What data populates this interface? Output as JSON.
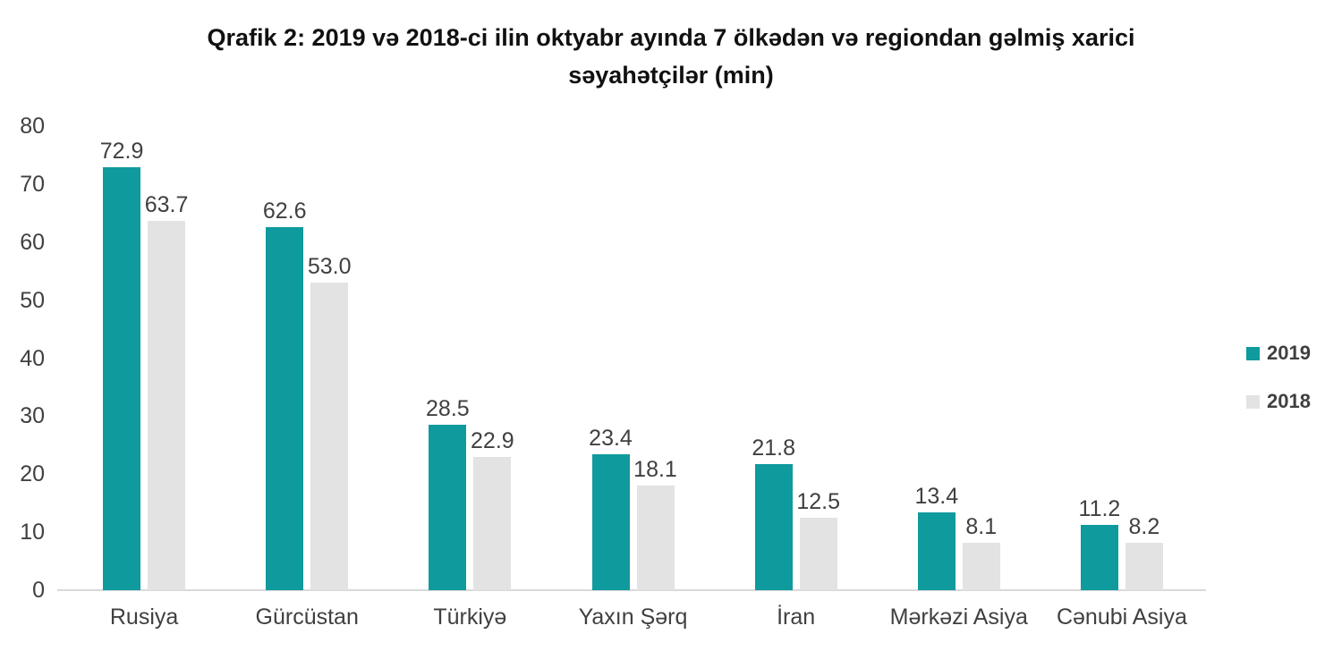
{
  "title": "Qrafik 2: 2019 və 2018-ci ilin oktyabr ayında 7 ölkədən və regiondan gəlmiş xarici səyahətçilər (min)",
  "colors": {
    "series_2019": "#0f9a9d",
    "series_2018": "#e3e3e3",
    "axis_line": "#d9d9d9",
    "label_text": "#404040",
    "title_text": "#111111"
  },
  "legend": [
    {
      "label": "2019",
      "color_key": "series_2019"
    },
    {
      "label": "2018",
      "color_key": "series_2018"
    }
  ],
  "chart_data": {
    "type": "bar",
    "title": "Qrafik 2: 2019 və 2018-ci ilin oktyabr ayında 7 ölkədən və regiondan gəlmiş xarici səyahətçilər (min)",
    "categories": [
      "Rusiya",
      "Gürcüstan",
      "Türkiyə",
      "Yaxın Şərq",
      "İran",
      "Mərkəzi Asiya",
      "Cənubi Asiya"
    ],
    "series": [
      {
        "name": "2019",
        "values": [
          72.9,
          62.6,
          28.5,
          23.4,
          21.8,
          13.4,
          11.2
        ]
      },
      {
        "name": "2018",
        "values": [
          63.7,
          53.0,
          22.9,
          18.1,
          12.5,
          8.1,
          8.2
        ]
      }
    ],
    "xlabel": "",
    "ylabel": "",
    "ylim": [
      0,
      80
    ],
    "yticks": [
      0,
      10,
      20,
      30,
      40,
      50,
      60,
      70,
      80
    ],
    "grid": false,
    "legend_position": "right",
    "value_labels": true,
    "value_label_format": "one_decimal"
  }
}
